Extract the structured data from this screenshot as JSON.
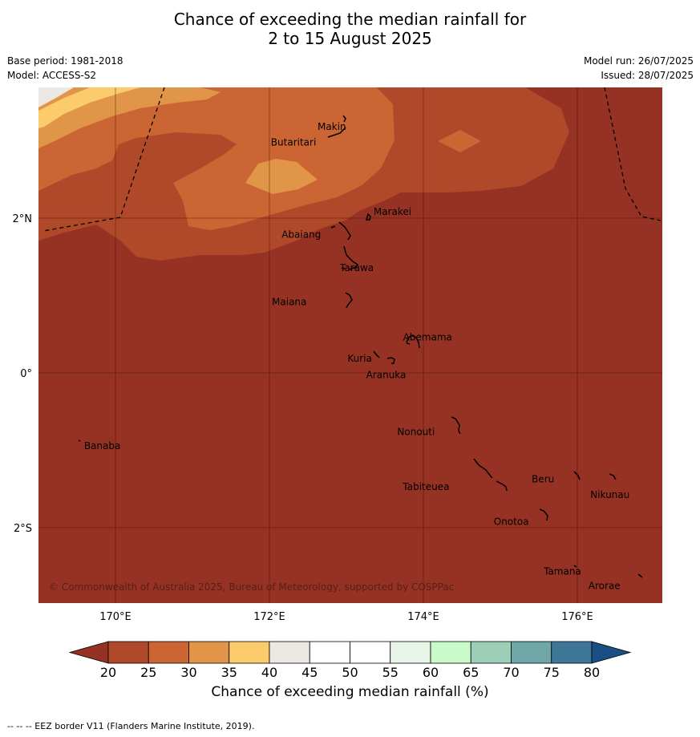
{
  "title": {
    "line1": "Chance of exceeding the median rainfall for",
    "line2": "2 to 15 August 2025"
  },
  "meta": {
    "base_period": "Base period: 1981-2018",
    "model": "Model: ACCESS-S2",
    "model_run": "Model run: 26/07/2025",
    "issued": "Issued: 28/07/2025"
  },
  "map": {
    "lon_range": [
      169,
      177.1
    ],
    "lat_range": [
      -3.0,
      3.7
    ],
    "lon_ticks": [
      {
        "value": 170,
        "label": "170°E"
      },
      {
        "value": 172,
        "label": "172°E"
      },
      {
        "value": 174,
        "label": "174°E"
      },
      {
        "value": 176,
        "label": "176°E"
      }
    ],
    "lat_ticks": [
      {
        "value": 2,
        "label": "2°N"
      },
      {
        "value": 0,
        "label": "0°"
      },
      {
        "value": -2,
        "label": "2°S"
      }
    ],
    "places": [
      {
        "name": "Makin",
        "lon": 172.99,
        "lat": 3.2
      },
      {
        "name": "Butaritari",
        "lon": 172.8,
        "lat": 3.05
      },
      {
        "name": "Marakei",
        "lon": 173.28,
        "lat": 2.0
      },
      {
        "name": "Abaiang",
        "lon": 172.95,
        "lat": 1.85
      },
      {
        "name": "Tarawa",
        "lon": 173.0,
        "lat": 1.45
      },
      {
        "name": "Maiana",
        "lon": 172.99,
        "lat": 0.94
      },
      {
        "name": "Abemama",
        "lon": 173.85,
        "lat": 0.4
      },
      {
        "name": "Kuria",
        "lon": 173.4,
        "lat": 0.23
      },
      {
        "name": "Aranuka",
        "lon": 173.6,
        "lat": 0.17
      },
      {
        "name": "Nonouti",
        "lon": 174.4,
        "lat": -0.65
      },
      {
        "name": "Banaba",
        "lon": 169.54,
        "lat": -0.86
      },
      {
        "name": "Beru",
        "lon": 175.98,
        "lat": -1.3
      },
      {
        "name": "Nikunau",
        "lon": 176.45,
        "lat": -1.37
      },
      {
        "name": "Tabiteuea",
        "lon": 174.9,
        "lat": -1.4
      },
      {
        "name": "Onotoa",
        "lon": 175.56,
        "lat": -1.82
      },
      {
        "name": "Tamana",
        "lon": 175.98,
        "lat": -2.5
      },
      {
        "name": "Arorae",
        "lon": 176.8,
        "lat": -2.65
      }
    ],
    "copyright": "© Commonwealth of Australia 2025, Bureau of Meteorology, supported by COSPPac",
    "dominant_category": "20-25 (below 20)"
  },
  "colorbar": {
    "ticks": [
      "20",
      "25",
      "30",
      "35",
      "40",
      "45",
      "50",
      "55",
      "60",
      "65",
      "70",
      "75",
      "80"
    ],
    "colors": [
      "#b0482a",
      "#cb6533",
      "#e19548",
      "#fbcb6c",
      "#ebe8e4",
      "#ffffff",
      "#ffffff",
      "#e8f4e8",
      "#c9fac9",
      "#9bcfb8",
      "#6fa6a7",
      "#3f7799"
    ],
    "under_color": "#963223",
    "over_color": "#1a4f85",
    "label": "Chance of exceeding median rainfall (%)"
  },
  "footnote": "--  --  -- EEZ border V11 (Flanders Marine Institute, 2019)."
}
